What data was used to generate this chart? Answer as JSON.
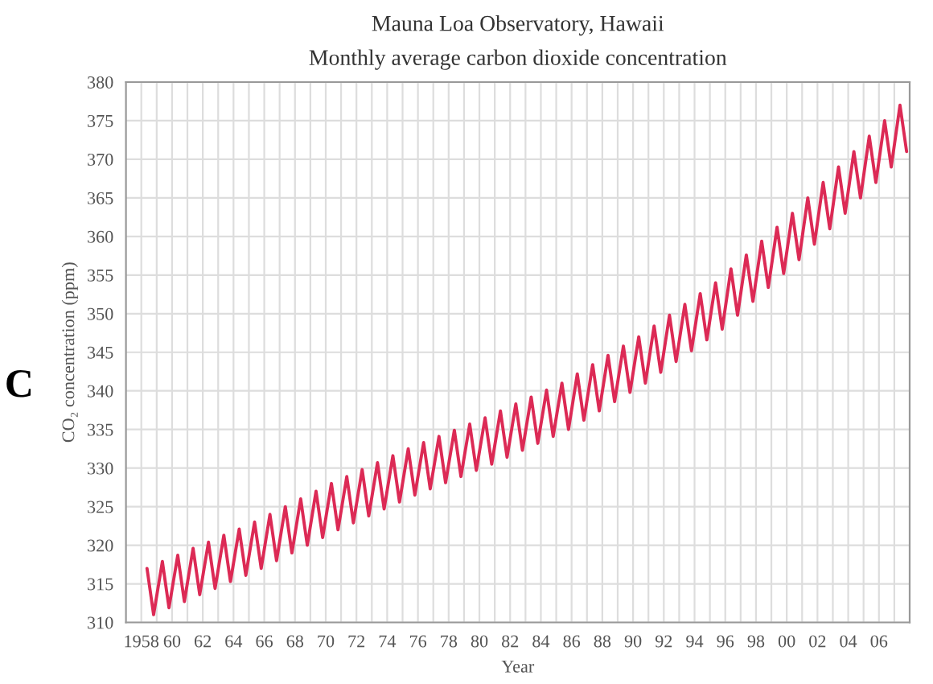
{
  "chart_data": {
    "type": "line",
    "title": "Mauna Loa Observatory, Hawaii",
    "subtitle": "Monthly average carbon dioxide concentration",
    "xlabel": "Year",
    "ylabel": "CO₂ concentration (ppm)",
    "annotations": [
      "C"
    ],
    "x": [
      1958.37,
      1958.8,
      1959.37,
      1959.8,
      1960.37,
      1960.8,
      1961.37,
      1961.8,
      1962.37,
      1962.8,
      1963.37,
      1963.8,
      1964.37,
      1964.8,
      1965.37,
      1965.8,
      1966.37,
      1966.8,
      1967.37,
      1967.8,
      1968.37,
      1968.8,
      1969.37,
      1969.8,
      1970.37,
      1970.8,
      1971.37,
      1971.8,
      1972.37,
      1972.8,
      1973.37,
      1973.8,
      1974.37,
      1974.8,
      1975.37,
      1975.8,
      1976.37,
      1976.8,
      1977.37,
      1977.8,
      1978.37,
      1978.8,
      1979.37,
      1979.8,
      1980.37,
      1980.8,
      1981.37,
      1981.8,
      1982.37,
      1982.8,
      1983.37,
      1983.8,
      1984.37,
      1984.8,
      1985.37,
      1985.8,
      1986.37,
      1986.8,
      1987.37,
      1987.8,
      1988.37,
      1988.8,
      1989.37,
      1989.8,
      1990.37,
      1990.8,
      1991.37,
      1991.8,
      1992.37,
      1992.8,
      1993.37,
      1993.8,
      1994.37,
      1994.8,
      1995.37,
      1995.8,
      1996.37,
      1996.8,
      1997.37,
      1997.8,
      1998.37,
      1998.8,
      1999.37,
      1999.8,
      2000.37,
      2000.8,
      2001.37,
      2001.8,
      2002.37,
      2002.8,
      2003.37,
      2003.8,
      2004.37,
      2004.8,
      2005.37,
      2005.8,
      2006.37,
      2006.8,
      2007.37,
      2007.8
    ],
    "series": [
      {
        "color": "#dc2a55",
        "values": [
          317.0,
          311.0,
          317.9,
          311.9,
          318.7,
          312.7,
          319.6,
          313.6,
          320.4,
          314.4,
          321.3,
          315.3,
          322.1,
          316.1,
          323.0,
          317.0,
          324.0,
          318.0,
          325.0,
          319.0,
          326.0,
          320.0,
          327.0,
          321.0,
          328.0,
          322.0,
          328.9,
          322.9,
          329.8,
          323.8,
          330.7,
          324.7,
          331.6,
          325.6,
          332.5,
          326.5,
          333.3,
          327.3,
          334.1,
          328.1,
          334.9,
          328.9,
          335.7,
          329.7,
          336.5,
          330.5,
          337.4,
          331.4,
          338.3,
          332.3,
          339.2,
          333.2,
          340.1,
          334.1,
          341.0,
          335.0,
          342.2,
          336.2,
          343.4,
          337.4,
          344.6,
          338.6,
          345.8,
          339.8,
          347.0,
          341.0,
          348.4,
          342.4,
          349.8,
          343.8,
          351.2,
          345.2,
          352.6,
          346.6,
          354.0,
          348.0,
          355.8,
          349.8,
          357.6,
          351.6,
          359.4,
          353.4,
          361.2,
          355.2,
          363.0,
          357.0,
          365.0,
          359.0,
          367.0,
          361.0,
          369.0,
          363.0,
          371.0,
          365.0,
          373.0,
          367.0,
          375.0,
          369.0,
          377.0,
          371.0
        ]
      }
    ],
    "xlim": [
      1957,
      2008
    ],
    "ylim": [
      310,
      380
    ],
    "xticks": [
      {
        "value": 1958,
        "label": "1958"
      },
      {
        "value": 1959,
        "label": null
      },
      {
        "value": 1960,
        "label": "60"
      },
      {
        "value": 1961,
        "label": null
      },
      {
        "value": 1962,
        "label": "62"
      },
      {
        "value": 1963,
        "label": null
      },
      {
        "value": 1964,
        "label": "64"
      },
      {
        "value": 1965,
        "label": null
      },
      {
        "value": 1966,
        "label": "66"
      },
      {
        "value": 1967,
        "label": null
      },
      {
        "value": 1968,
        "label": "68"
      },
      {
        "value": 1969,
        "label": null
      },
      {
        "value": 1970,
        "label": "70"
      },
      {
        "value": 1971,
        "label": null
      },
      {
        "value": 1972,
        "label": "72"
      },
      {
        "value": 1973,
        "label": null
      },
      {
        "value": 1974,
        "label": "74"
      },
      {
        "value": 1975,
        "label": null
      },
      {
        "value": 1976,
        "label": "76"
      },
      {
        "value": 1977,
        "label": null
      },
      {
        "value": 1978,
        "label": "78"
      },
      {
        "value": 1979,
        "label": null
      },
      {
        "value": 1980,
        "label": "80"
      },
      {
        "value": 1981,
        "label": null
      },
      {
        "value": 1982,
        "label": "82"
      },
      {
        "value": 1983,
        "label": null
      },
      {
        "value": 1984,
        "label": "84"
      },
      {
        "value": 1985,
        "label": null
      },
      {
        "value": 1986,
        "label": "86"
      },
      {
        "value": 1987,
        "label": null
      },
      {
        "value": 1988,
        "label": "88"
      },
      {
        "value": 1989,
        "label": null
      },
      {
        "value": 1990,
        "label": "90"
      },
      {
        "value": 1991,
        "label": null
      },
      {
        "value": 1992,
        "label": "92"
      },
      {
        "value": 1993,
        "label": null
      },
      {
        "value": 1994,
        "label": "94"
      },
      {
        "value": 1995,
        "label": null
      },
      {
        "value": 1996,
        "label": "96"
      },
      {
        "value": 1997,
        "label": null
      },
      {
        "value": 1998,
        "label": "98"
      },
      {
        "value": 1999,
        "label": null
      },
      {
        "value": 2000,
        "label": "00"
      },
      {
        "value": 2001,
        "label": null
      },
      {
        "value": 2002,
        "label": "02"
      },
      {
        "value": 2003,
        "label": null
      },
      {
        "value": 2004,
        "label": "04"
      },
      {
        "value": 2005,
        "label": null
      },
      {
        "value": 2006,
        "label": "06"
      },
      {
        "value": 2007,
        "label": null
      }
    ],
    "yticks": [
      310,
      315,
      320,
      325,
      330,
      335,
      340,
      345,
      350,
      355,
      360,
      365,
      370,
      375,
      380
    ],
    "grid": true,
    "marker": "none",
    "line_style": "solid"
  }
}
